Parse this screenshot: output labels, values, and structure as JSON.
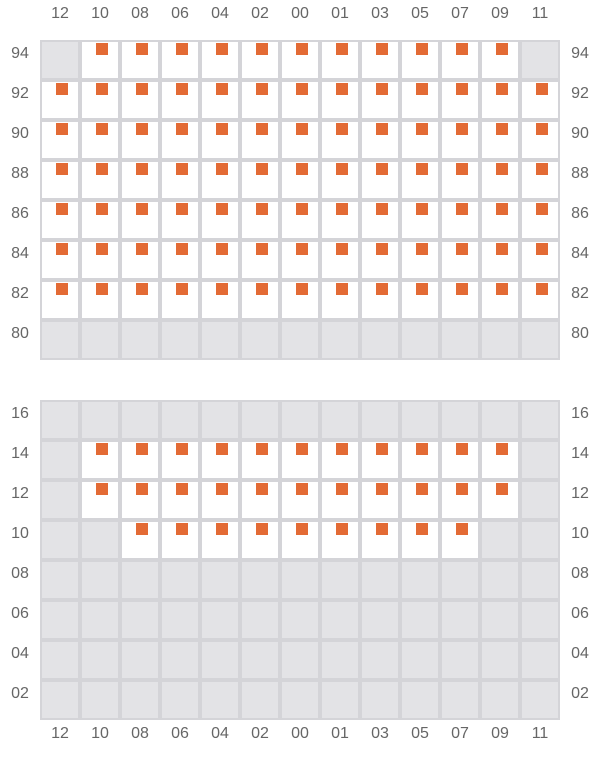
{
  "columns": [
    "12",
    "10",
    "08",
    "06",
    "04",
    "02",
    "00",
    "01",
    "03",
    "05",
    "07",
    "09",
    "11"
  ],
  "colors": {
    "selected_mark": "#e36b35",
    "unavailable": "#e3e3e6",
    "available": "#ffffff",
    "grid_line": "#d4d4d8"
  },
  "legend_codes": {
    "x": "available-selected",
    "o": "available",
    "-": "unavailable"
  },
  "sections": [
    {
      "rows": [
        {
          "label": "94",
          "cells": "-xxxxxxxxxxx-"
        },
        {
          "label": "92",
          "cells": "xxxxxxxxxxxxx"
        },
        {
          "label": "90",
          "cells": "xxxxxxxxxxxxx"
        },
        {
          "label": "88",
          "cells": "xxxxxxxxxxxxx"
        },
        {
          "label": "86",
          "cells": "xxxxxxxxxxxxx"
        },
        {
          "label": "84",
          "cells": "xxxxxxxxxxxxx"
        },
        {
          "label": "82",
          "cells": "xxxxxxxxxxxxx"
        },
        {
          "label": "80",
          "cells": "-------------"
        }
      ]
    },
    {
      "rows": [
        {
          "label": "16",
          "cells": "-------------"
        },
        {
          "label": "14",
          "cells": "-xxxxxxxxxxx-"
        },
        {
          "label": "12",
          "cells": "-xxxxxxxxxxx-"
        },
        {
          "label": "10",
          "cells": "--xxxxxxxxx--"
        },
        {
          "label": "08",
          "cells": "-------------"
        },
        {
          "label": "06",
          "cells": "-------------"
        },
        {
          "label": "04",
          "cells": "-------------"
        },
        {
          "label": "02",
          "cells": "-------------"
        }
      ]
    }
  ]
}
